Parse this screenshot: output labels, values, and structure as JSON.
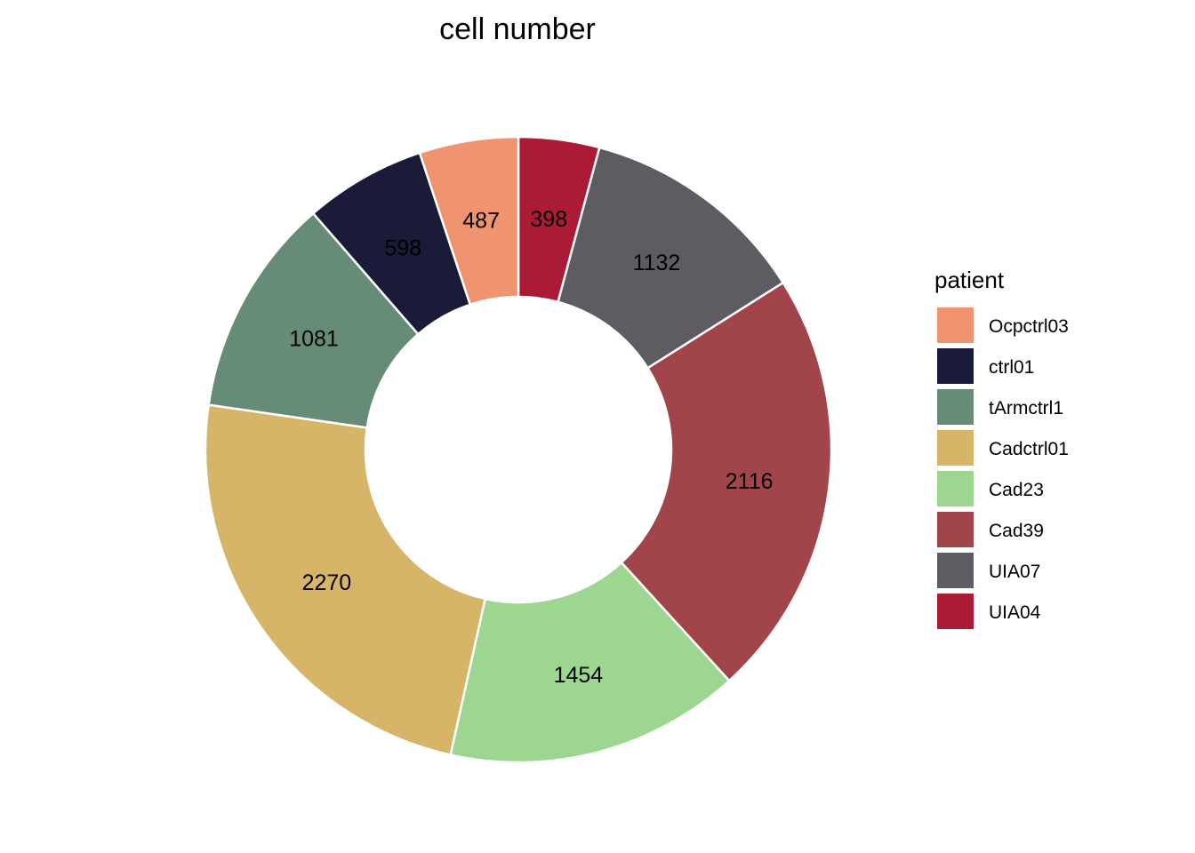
{
  "chart_data": {
    "type": "pie",
    "style": "donut",
    "title": "cell number",
    "legend_title": "patient",
    "legend_placement": "right",
    "slices": [
      {
        "name": "UIA04",
        "value": 398,
        "color": "#AC1B36"
      },
      {
        "name": "UIA07",
        "value": 1132,
        "color": "#5E5B62"
      },
      {
        "name": "Cad39",
        "value": 2116,
        "color": "#A2454A"
      },
      {
        "name": "Cad23",
        "value": 1454,
        "color": "#9DD690"
      },
      {
        "name": "Cadctrl01",
        "value": 2270,
        "color": "#D6B568"
      },
      {
        "name": "tArmctrl1",
        "value": 1081,
        "color": "#668C78"
      },
      {
        "name": "ctrl01",
        "value": 598,
        "color": "#191B38"
      },
      {
        "name": "Ocpctrl03",
        "value": 487,
        "color": "#EF9370"
      }
    ],
    "legend_order": [
      "Ocpctrl03",
      "ctrl01",
      "tArmctrl1",
      "Cadctrl01",
      "Cad23",
      "Cad39",
      "UIA07",
      "UIA04"
    ]
  }
}
